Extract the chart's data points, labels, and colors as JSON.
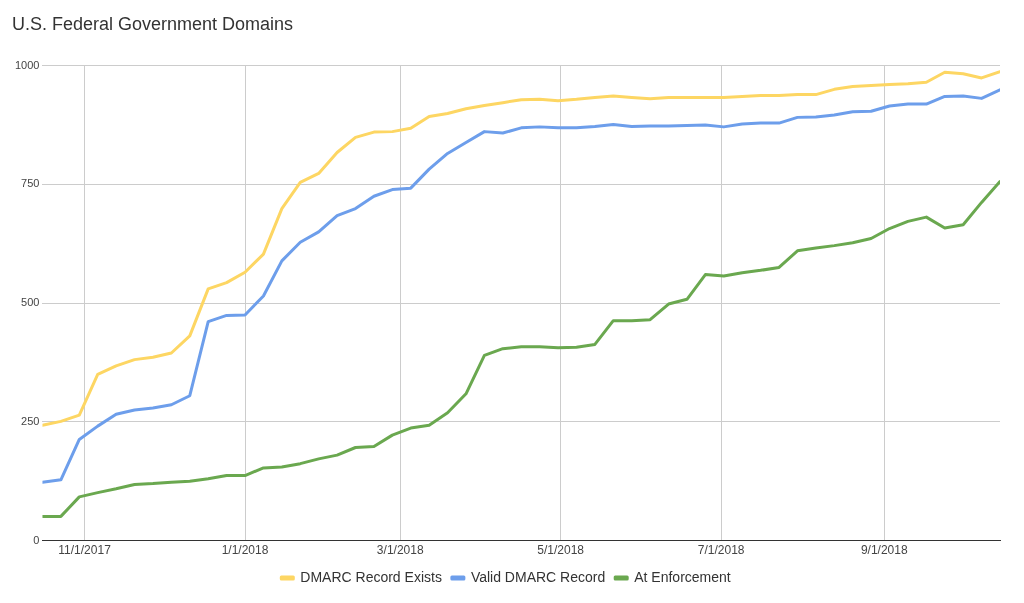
{
  "chart_data": {
    "type": "line",
    "title": "U.S. Federal Government Domains",
    "x": [
      "2017-10-16",
      "2017-10-23",
      "2017-10-30",
      "2017-11-06",
      "2017-11-13",
      "2017-11-20",
      "2017-11-27",
      "2017-12-04",
      "2017-12-11",
      "2017-12-18",
      "2017-12-25",
      "2018-01-01",
      "2018-01-08",
      "2018-01-15",
      "2018-01-22",
      "2018-01-29",
      "2018-02-05",
      "2018-02-12",
      "2018-02-19",
      "2018-02-26",
      "2018-03-05",
      "2018-03-12",
      "2018-03-19",
      "2018-03-26",
      "2018-04-02",
      "2018-04-09",
      "2018-04-16",
      "2018-04-23",
      "2018-04-30",
      "2018-05-07",
      "2018-05-14",
      "2018-05-21",
      "2018-05-28",
      "2018-06-04",
      "2018-06-11",
      "2018-06-18",
      "2018-06-25",
      "2018-07-02",
      "2018-07-09",
      "2018-07-16",
      "2018-07-23",
      "2018-07-30",
      "2018-08-06",
      "2018-08-13",
      "2018-08-20",
      "2018-08-27",
      "2018-09-03",
      "2018-09-10",
      "2018-09-17",
      "2018-09-24",
      "2018-10-01",
      "2018-10-08",
      "2018-10-15"
    ],
    "series": [
      {
        "name": "DMARC Record Exists",
        "color": "#fdd663",
        "values": [
          243,
          251,
          264,
          350,
          368,
          381,
          386,
          395,
          431,
          530,
          543,
          565,
          603,
          699,
          754,
          773,
          817,
          849,
          860,
          861,
          868,
          893,
          899,
          909,
          916,
          922,
          928,
          929,
          926,
          929,
          933,
          936,
          933,
          930,
          933,
          933,
          933,
          933,
          935,
          937,
          937,
          939,
          939,
          950,
          956,
          958,
          960,
          962,
          965,
          986,
          983,
          974,
          987
        ]
      },
      {
        "name": "Valid DMARC Record",
        "color": "#6d9eeb",
        "values": [
          123,
          128,
          213,
          241,
          266,
          275,
          279,
          286,
          305,
          461,
          474,
          475,
          515,
          589,
          628,
          650,
          684,
          699,
          725,
          739,
          742,
          782,
          815,
          838,
          861,
          858,
          869,
          871,
          869,
          869,
          872,
          876,
          872,
          873,
          873,
          874,
          875,
          871,
          877,
          879,
          879,
          891,
          892,
          896,
          903,
          904,
          915,
          919,
          919,
          935,
          936,
          931,
          949
        ]
      },
      {
        "name": "At Enforcement",
        "color": "#6aa84f",
        "values": [
          51,
          51,
          92,
          101,
          109,
          118,
          120,
          123,
          125,
          130,
          137,
          137,
          153,
          155,
          162,
          172,
          180,
          196,
          198,
          222,
          237,
          243,
          269,
          309,
          390,
          404,
          408,
          408,
          406,
          407,
          413,
          463,
          463,
          465,
          498,
          508,
          560,
          557,
          564,
          569,
          575,
          610,
          616,
          621,
          627,
          636,
          657,
          672,
          681,
          658,
          665,
          712,
          756
        ]
      }
    ],
    "xlim": [
      "2017-10-16",
      "2018-10-15"
    ],
    "xticks": [
      {
        "value": "2017-11-01",
        "label": "11/1/2017"
      },
      {
        "value": "2018-01-01",
        "label": "1/1/2018"
      },
      {
        "value": "2018-03-01",
        "label": "3/1/2018"
      },
      {
        "value": "2018-05-01",
        "label": "5/1/2018"
      },
      {
        "value": "2018-07-01",
        "label": "7/1/2018"
      },
      {
        "value": "2018-09-01",
        "label": "9/1/2018"
      }
    ],
    "ylim": [
      0,
      1000
    ],
    "yticks": [
      0,
      250,
      500,
      750,
      1000
    ],
    "grid": true,
    "legend": "bottom",
    "marker": "none",
    "line_style": "solid"
  }
}
